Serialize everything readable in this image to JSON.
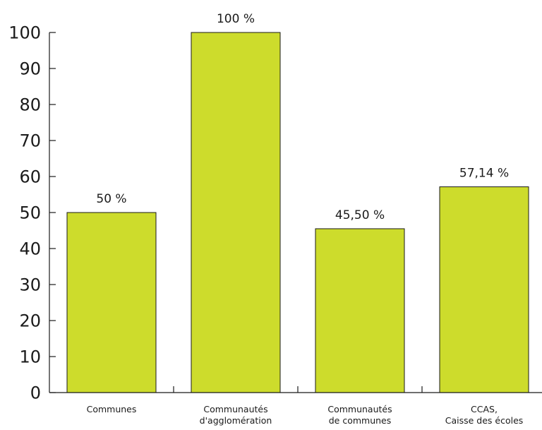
{
  "chart_data": {
    "type": "bar",
    "categories": [
      [
        "Communes"
      ],
      [
        "Communautés",
        "d'agglomération"
      ],
      [
        "Communautés",
        "de communes"
      ],
      [
        "CCAS,",
        "Caisse des écoles"
      ]
    ],
    "values": [
      50,
      100,
      45.5,
      57.14
    ],
    "data_labels": [
      "50 %",
      "100 %",
      "45,50 %",
      "57,14 %"
    ],
    "ylim": [
      0,
      100
    ],
    "yticks": [
      0,
      10,
      20,
      30,
      40,
      50,
      60,
      70,
      80,
      90,
      100
    ],
    "grid": false,
    "bar_color": "#cddc2c",
    "bar_edge_color": "#1a1a1a",
    "axis_color": "#1a1a1a"
  }
}
